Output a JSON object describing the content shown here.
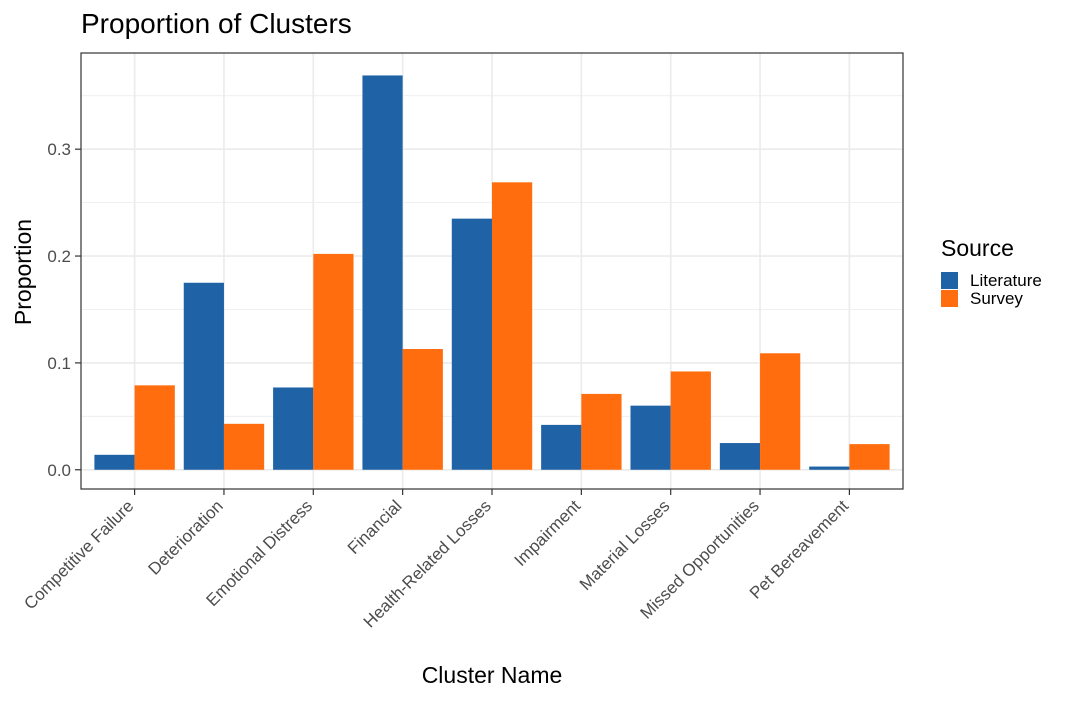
{
  "chart_data": {
    "type": "bar",
    "title": "Proportion of Clusters",
    "xlabel": "Cluster Name",
    "ylabel": "Proportion",
    "categories": [
      "Competitive Failure",
      "Deterioration",
      "Emotional Distress",
      "Financial",
      "Health-Related Losses",
      "Impairment",
      "Material Losses",
      "Missed Opportunities",
      "Pet Bereavement"
    ],
    "series": [
      {
        "name": "Literature",
        "color": "#1f63a6",
        "values": [
          0.014,
          0.175,
          0.077,
          0.369,
          0.235,
          0.042,
          0.06,
          0.025,
          0.003
        ]
      },
      {
        "name": "Survey",
        "color": "#ff6d0e",
        "values": [
          0.079,
          0.043,
          0.202,
          0.113,
          0.269,
          0.071,
          0.092,
          0.109,
          0.024
        ]
      }
    ],
    "ylim": [
      -0.018,
      0.39
    ],
    "yticks": [
      0.0,
      0.1,
      0.2,
      0.3
    ],
    "ytick_labels": [
      "0.0",
      "0.1",
      "0.2",
      "0.3"
    ],
    "grid": true,
    "legend": {
      "title": "Source",
      "position": "right"
    }
  }
}
